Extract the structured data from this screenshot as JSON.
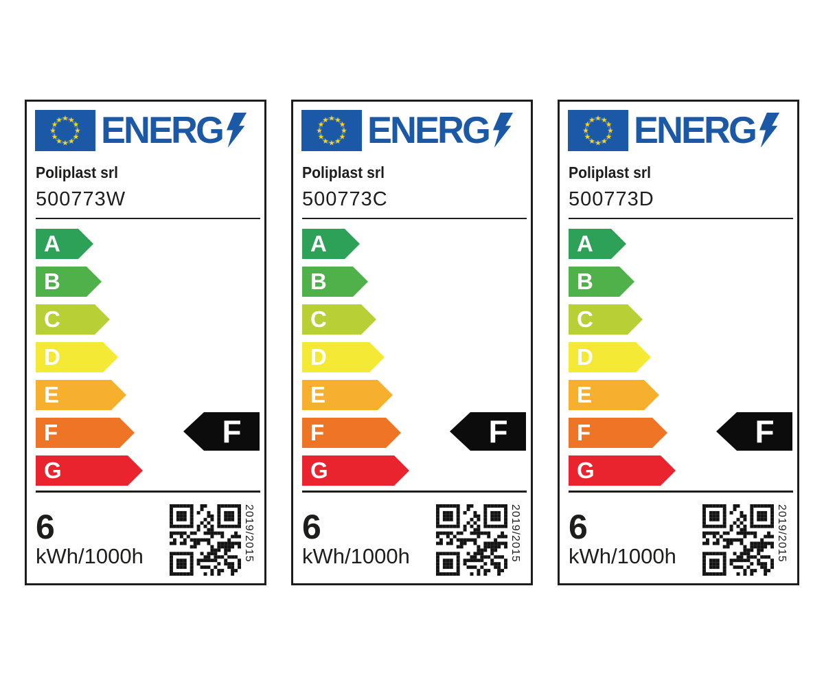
{
  "logo": {
    "text": "ENERG",
    "bolt_icon": "lightning-bolt",
    "flag_icon": "eu-flag-stars"
  },
  "colors": {
    "logo_blue": "#1b59a6",
    "flag_blue": "#1b59a6",
    "star_yellow": "#ffd617",
    "border_dark": "#1d1d1b",
    "pointer_black": "#0c0c0c"
  },
  "scale": {
    "classes": [
      {
        "letter": "A",
        "color": "#2ca157"
      },
      {
        "letter": "B",
        "color": "#4fb14a"
      },
      {
        "letter": "C",
        "color": "#b8cf36"
      },
      {
        "letter": "D",
        "color": "#f4e935"
      },
      {
        "letter": "E",
        "color": "#f6b02d"
      },
      {
        "letter": "F",
        "color": "#ee7526"
      },
      {
        "letter": "G",
        "color": "#e9242f"
      }
    ]
  },
  "labels": [
    {
      "supplier": "Poliplast srl",
      "model": "500773W",
      "rated_class": "F",
      "energy_value": "6",
      "energy_unit": "kWh/1000h",
      "regulation": "2019/2015"
    },
    {
      "supplier": "Poliplast srl",
      "model": "500773C",
      "rated_class": "F",
      "energy_value": "6",
      "energy_unit": "kWh/1000h",
      "regulation": "2019/2015"
    },
    {
      "supplier": "Poliplast srl",
      "model": "500773D",
      "rated_class": "F",
      "energy_value": "6",
      "energy_unit": "kWh/1000h",
      "regulation": "2019/2015"
    }
  ]
}
